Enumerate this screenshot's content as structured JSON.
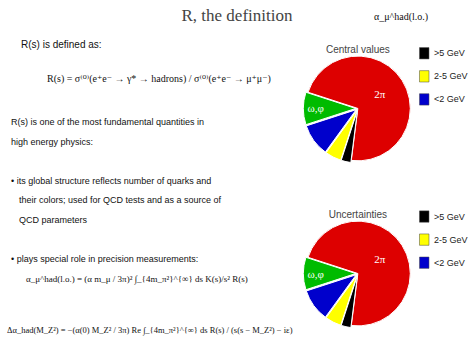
{
  "chart_data": {
    "type": "pie",
    "title": "R, the definition",
    "annotations": [
      "R(s) is defined as:",
      "R(s) = σ⁽⁰⁾(e⁺e⁻ → γ* → hadrons) / σ⁽⁰⁾(e⁺e⁻ → μ⁺μ⁻)",
      "R(s) is one of the most fundamental quantities in",
      "high energy physics:",
      "• its global structure reflects number of quarks and",
      "their colors; used for QCD tests and as a source of",
      "QCD parameters",
      "• plays special role in precision measurements:",
      "α_μ^had(l.o.) = (α m_μ / 3π)² ∫_{4m_π²}^{∞} ds K(s)/s² R(s)",
      "Δα_had(M_Z²) = −(α(0) M_Z² / 3π) Re ∫_{4m_π²}^{∞} ds R(s) / (s(s − M_Z²) − iε)",
      "α_μ^had(l.o.)"
    ],
    "categories": [
      null,
      ">5 GeV",
      "2-5 GeV",
      "<2 GeV",
      null
    ],
    "colors": [
      "#dd0000",
      "#000000",
      "#ffff00",
      "#0000cc",
      "#00bb00"
    ],
    "legend": "right",
    "series": [
      {
        "name": "Central values",
        "values": [
          72,
          3,
          5,
          10,
          10
        ],
        "annotations": [
          "2π",
          "ω,φ"
        ]
      },
      {
        "name": "Uncertainties",
        "values": [
          72,
          3,
          5,
          10,
          10
        ],
        "annotations": [
          "2π",
          "ω,φ"
        ]
      }
    ]
  }
}
